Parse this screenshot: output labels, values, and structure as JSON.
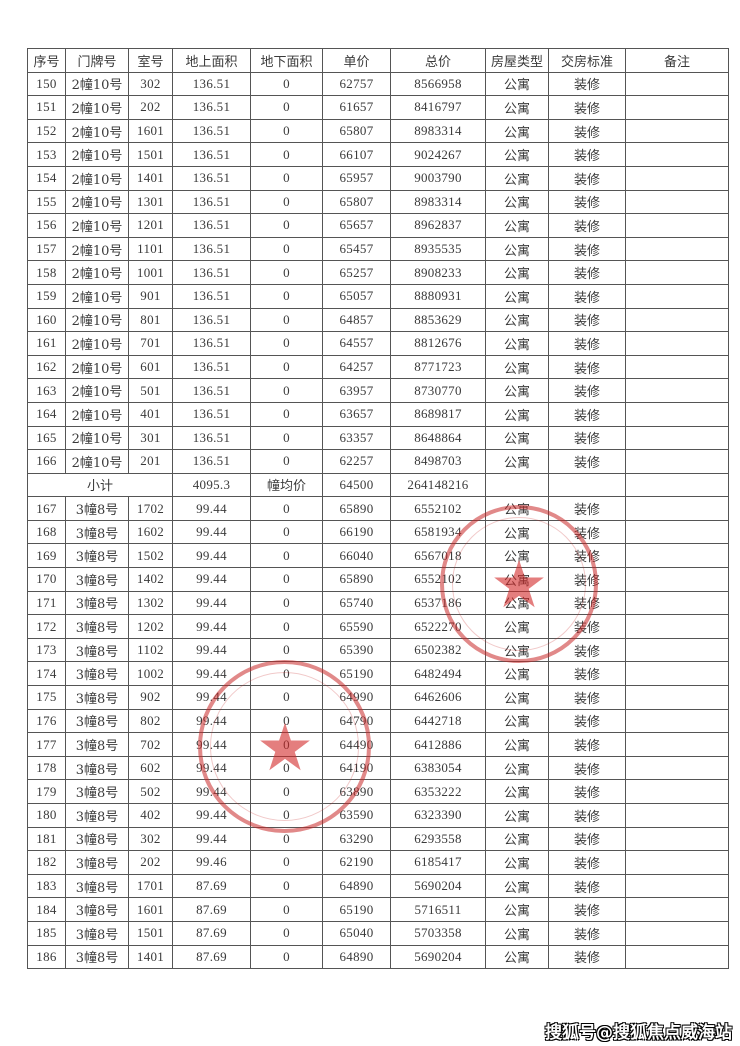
{
  "columns": [
    "序号",
    "门牌号",
    "室号",
    "地上面积",
    "地下面积",
    "单价",
    "总价",
    "房屋类型",
    "交房标准",
    "备注"
  ],
  "rows_before_subtotal": [
    [
      "150",
      "2幢10号",
      "302",
      "136.51",
      "0",
      "62757",
      "8566958",
      "公寓",
      "装修",
      ""
    ],
    [
      "151",
      "2幢10号",
      "202",
      "136.51",
      "0",
      "61657",
      "8416797",
      "公寓",
      "装修",
      ""
    ],
    [
      "152",
      "2幢10号",
      "1601",
      "136.51",
      "0",
      "65807",
      "8983314",
      "公寓",
      "装修",
      ""
    ],
    [
      "153",
      "2幢10号",
      "1501",
      "136.51",
      "0",
      "66107",
      "9024267",
      "公寓",
      "装修",
      ""
    ],
    [
      "154",
      "2幢10号",
      "1401",
      "136.51",
      "0",
      "65957",
      "9003790",
      "公寓",
      "装修",
      ""
    ],
    [
      "155",
      "2幢10号",
      "1301",
      "136.51",
      "0",
      "65807",
      "8983314",
      "公寓",
      "装修",
      ""
    ],
    [
      "156",
      "2幢10号",
      "1201",
      "136.51",
      "0",
      "65657",
      "8962837",
      "公寓",
      "装修",
      ""
    ],
    [
      "157",
      "2幢10号",
      "1101",
      "136.51",
      "0",
      "65457",
      "8935535",
      "公寓",
      "装修",
      ""
    ],
    [
      "158",
      "2幢10号",
      "1001",
      "136.51",
      "0",
      "65257",
      "8908233",
      "公寓",
      "装修",
      ""
    ],
    [
      "159",
      "2幢10号",
      "901",
      "136.51",
      "0",
      "65057",
      "8880931",
      "公寓",
      "装修",
      ""
    ],
    [
      "160",
      "2幢10号",
      "801",
      "136.51",
      "0",
      "64857",
      "8853629",
      "公寓",
      "装修",
      ""
    ],
    [
      "161",
      "2幢10号",
      "701",
      "136.51",
      "0",
      "64557",
      "8812676",
      "公寓",
      "装修",
      ""
    ],
    [
      "162",
      "2幢10号",
      "601",
      "136.51",
      "0",
      "64257",
      "8771723",
      "公寓",
      "装修",
      ""
    ],
    [
      "163",
      "2幢10号",
      "501",
      "136.51",
      "0",
      "63957",
      "8730770",
      "公寓",
      "装修",
      ""
    ],
    [
      "164",
      "2幢10号",
      "401",
      "136.51",
      "0",
      "63657",
      "8689817",
      "公寓",
      "装修",
      ""
    ],
    [
      "165",
      "2幢10号",
      "301",
      "136.51",
      "0",
      "63357",
      "8648864",
      "公寓",
      "装修",
      ""
    ],
    [
      "166",
      "2幢10号",
      "201",
      "136.51",
      "0",
      "62257",
      "8498703",
      "公寓",
      "装修",
      ""
    ]
  ],
  "subtotal": {
    "label": "小计",
    "area": "4095.3",
    "avg_label": "幢均价",
    "avg_price": "64500",
    "total": "264148216"
  },
  "rows_after_subtotal": [
    [
      "167",
      "3幢8号",
      "1702",
      "99.44",
      "0",
      "65890",
      "6552102",
      "公寓",
      "装修",
      ""
    ],
    [
      "168",
      "3幢8号",
      "1602",
      "99.44",
      "0",
      "66190",
      "6581934",
      "公寓",
      "装修",
      ""
    ],
    [
      "169",
      "3幢8号",
      "1502",
      "99.44",
      "0",
      "66040",
      "6567018",
      "公寓",
      "装修",
      ""
    ],
    [
      "170",
      "3幢8号",
      "1402",
      "99.44",
      "0",
      "65890",
      "6552102",
      "公寓",
      "装修",
      ""
    ],
    [
      "171",
      "3幢8号",
      "1302",
      "99.44",
      "0",
      "65740",
      "6537186",
      "公寓",
      "装修",
      ""
    ],
    [
      "172",
      "3幢8号",
      "1202",
      "99.44",
      "0",
      "65590",
      "6522270",
      "公寓",
      "装修",
      ""
    ],
    [
      "173",
      "3幢8号",
      "1102",
      "99.44",
      "0",
      "65390",
      "6502382",
      "公寓",
      "装修",
      ""
    ],
    [
      "174",
      "3幢8号",
      "1002",
      "99.44",
      "0",
      "65190",
      "6482494",
      "公寓",
      "装修",
      ""
    ],
    [
      "175",
      "3幢8号",
      "902",
      "99.44",
      "0",
      "64990",
      "6462606",
      "公寓",
      "装修",
      ""
    ],
    [
      "176",
      "3幢8号",
      "802",
      "99.44",
      "0",
      "64790",
      "6442718",
      "公寓",
      "装修",
      ""
    ],
    [
      "177",
      "3幢8号",
      "702",
      "99.44",
      "0",
      "64490",
      "6412886",
      "公寓",
      "装修",
      ""
    ],
    [
      "178",
      "3幢8号",
      "602",
      "99.44",
      "0",
      "64190",
      "6383054",
      "公寓",
      "装修",
      ""
    ],
    [
      "179",
      "3幢8号",
      "502",
      "99.44",
      "0",
      "63890",
      "6353222",
      "公寓",
      "装修",
      ""
    ],
    [
      "180",
      "3幢8号",
      "402",
      "99.44",
      "0",
      "63590",
      "6323390",
      "公寓",
      "装修",
      ""
    ],
    [
      "181",
      "3幢8号",
      "302",
      "99.44",
      "0",
      "63290",
      "6293558",
      "公寓",
      "装修",
      ""
    ],
    [
      "182",
      "3幢8号",
      "202",
      "99.46",
      "0",
      "62190",
      "6185417",
      "公寓",
      "装修",
      ""
    ],
    [
      "183",
      "3幢8号",
      "1701",
      "87.69",
      "0",
      "64890",
      "5690204",
      "公寓",
      "装修",
      ""
    ],
    [
      "184",
      "3幢8号",
      "1601",
      "87.69",
      "0",
      "65190",
      "5716511",
      "公寓",
      "装修",
      ""
    ],
    [
      "185",
      "3幢8号",
      "1501",
      "87.69",
      "0",
      "65040",
      "5703358",
      "公寓",
      "装修",
      ""
    ],
    [
      "186",
      "3幢8号",
      "1401",
      "87.69",
      "0",
      "64890",
      "5690204",
      "公寓",
      "装修",
      ""
    ]
  ],
  "stamps": {
    "color": "#c82828",
    "icon": "star-icon"
  },
  "watermark": "搜狐号@搜狐焦点威海站"
}
